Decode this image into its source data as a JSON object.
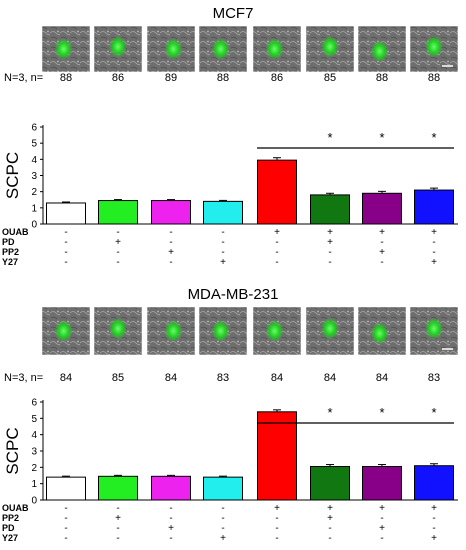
{
  "panels": [
    {
      "title": "MCF7",
      "n_label": "N=3, n=",
      "n_values": [
        "88",
        "86",
        "89",
        "88",
        "86",
        "85",
        "88",
        "88"
      ],
      "micrographs": [
        "cell-micrograph",
        "cell-micrograph",
        "cell-micrograph",
        "cell-micrograph",
        "cell-micrograph",
        "cell-micrograph",
        "cell-micrograph",
        "cell-micrograph"
      ],
      "chart_data": {
        "type": "bar",
        "ylabel": "SCPC",
        "ylim": [
          0,
          6
        ],
        "yticks": [
          0,
          1,
          2,
          3,
          4,
          5,
          6
        ],
        "values": [
          1.3,
          1.45,
          1.45,
          1.4,
          3.95,
          1.8,
          1.9,
          2.1
        ],
        "errors": [
          0.06,
          0.06,
          0.06,
          0.06,
          0.15,
          0.1,
          0.12,
          0.12
        ],
        "colors": [
          "#ffffff",
          "#22ee22",
          "#ee22ee",
          "#22eeee",
          "#ff0000",
          "#117711",
          "#880088",
          "#1111ff"
        ],
        "significance": {
          "from_bar": 4,
          "to_bar": 7,
          "stars_on_bars": [
            5,
            6,
            7
          ],
          "symbol": "*"
        },
        "treatments": [
          {
            "label": "OUAB",
            "marks": [
              "-",
              "-",
              "-",
              "-",
              "+",
              "+",
              "+",
              "+"
            ]
          },
          {
            "label": "PD",
            "marks": [
              "-",
              "+",
              "-",
              "-",
              "-",
              "+",
              "-",
              "-"
            ]
          },
          {
            "label": "PP2",
            "marks": [
              "-",
              "-",
              "+",
              "-",
              "-",
              "-",
              "+",
              "-"
            ]
          },
          {
            "label": "Y27",
            "marks": [
              "-",
              "-",
              "-",
              "+",
              "-",
              "-",
              "-",
              "+"
            ]
          }
        ]
      }
    },
    {
      "title": "MDA-MB-231",
      "n_label": "N=3, n=",
      "n_values": [
        "84",
        "85",
        "84",
        "83",
        "84",
        "84",
        "84",
        "83"
      ],
      "micrographs": [
        "cell-micrograph",
        "cell-micrograph",
        "cell-micrograph",
        "cell-micrograph",
        "cell-micrograph",
        "cell-micrograph",
        "cell-micrograph",
        "cell-micrograph"
      ],
      "chart_data": {
        "type": "bar",
        "ylabel": "SCPC",
        "ylim": [
          0,
          6
        ],
        "yticks": [
          0,
          1,
          2,
          3,
          4,
          5,
          6
        ],
        "values": [
          1.4,
          1.45,
          1.45,
          1.4,
          5.4,
          2.05,
          2.05,
          2.1
        ],
        "errors": [
          0.06,
          0.06,
          0.06,
          0.06,
          0.12,
          0.12,
          0.12,
          0.12
        ],
        "colors": [
          "#ffffff",
          "#22ee22",
          "#ee22ee",
          "#22eeee",
          "#ff0000",
          "#117711",
          "#880088",
          "#1111ff"
        ],
        "significance": {
          "from_bar": 4,
          "to_bar": 7,
          "stars_on_bars": [
            5,
            6,
            7
          ],
          "symbol": "*"
        },
        "treatments": [
          {
            "label": "OUAB",
            "marks": [
              "-",
              "-",
              "-",
              "-",
              "+",
              "+",
              "+",
              "+"
            ]
          },
          {
            "label": "PP2",
            "marks": [
              "-",
              "+",
              "-",
              "-",
              "-",
              "+",
              "-",
              "-"
            ]
          },
          {
            "label": "PD",
            "marks": [
              "-",
              "-",
              "+",
              "-",
              "-",
              "-",
              "+",
              "-"
            ]
          },
          {
            "label": "Y27",
            "marks": [
              "-",
              "-",
              "-",
              "+",
              "-",
              "-",
              "-",
              "+"
            ]
          }
        ]
      }
    }
  ]
}
